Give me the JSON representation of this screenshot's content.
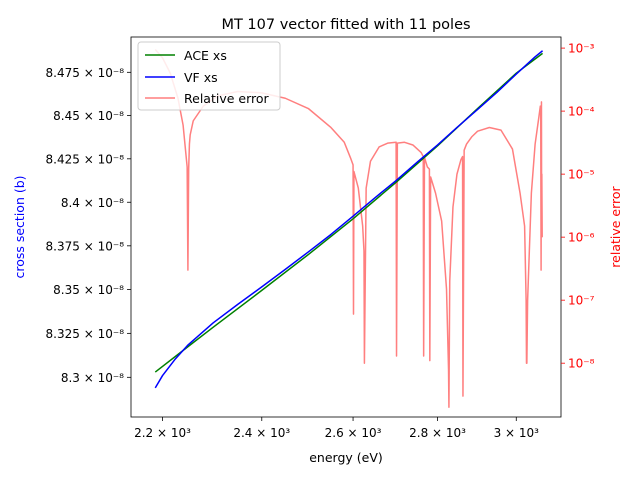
{
  "chart_data": {
    "type": "line",
    "title": "MT 107 vector fitted with 11 poles",
    "xlabel": "energy (eV)",
    "ylabel_left": "cross section (b)",
    "ylabel_right": "relative error",
    "x_scale": "log",
    "y_left_scale": "log",
    "y_right_scale": "log",
    "xlim": [
      2140,
      3120
    ],
    "ylim_left": [
      8.2775e-08,
      8.4955e-08
    ],
    "ylim_right": [
      1.4e-09,
      0.0015
    ],
    "x_ticks": [
      {
        "value": 2200,
        "label": "2.2 × 10³"
      },
      {
        "value": 2400,
        "label": "2.4 × 10³"
      },
      {
        "value": 2600,
        "label": "2.6 × 10³"
      },
      {
        "value": 2800,
        "label": "2.8 × 10³"
      },
      {
        "value": 3000,
        "label": "3 × 10³"
      }
    ],
    "y_left_ticks": [
      {
        "value": 8.3e-08,
        "label": "8.3 × 10⁻⁸"
      },
      {
        "value": 8.325e-08,
        "label": "8.325 × 10⁻⁸"
      },
      {
        "value": 8.35e-08,
        "label": "8.35 × 10⁻⁸"
      },
      {
        "value": 8.375e-08,
        "label": "8.375 × 10⁻⁸"
      },
      {
        "value": 8.4e-08,
        "label": "8.4 × 10⁻⁸"
      },
      {
        "value": 8.425e-08,
        "label": "8.425 × 10⁻⁸"
      },
      {
        "value": 8.45e-08,
        "label": "8.45 × 10⁻⁸"
      },
      {
        "value": 8.475e-08,
        "label": "8.475 × 10⁻⁸"
      }
    ],
    "y_right_ticks": [
      {
        "value": 1e-08,
        "label": "10⁻⁸"
      },
      {
        "value": 1e-07,
        "label": "10⁻⁷"
      },
      {
        "value": 1e-06,
        "label": "10⁻⁶"
      },
      {
        "value": 1e-05,
        "label": "10⁻⁵"
      },
      {
        "value": 0.0001,
        "label": "10⁻⁴"
      },
      {
        "value": 0.001,
        "label": "10⁻³"
      }
    ],
    "legend": "top-left",
    "grid": false,
    "series": [
      {
        "name": "ACE xs",
        "color": "#008000",
        "axis": "left",
        "x": [
          2186,
          2250,
          2300,
          2400,
          2500,
          2600,
          2700,
          2800,
          2900,
          3000,
          3070
        ],
        "y": [
          8.303e-08,
          8.3175e-08,
          8.3285e-08,
          8.3495e-08,
          8.37e-08,
          8.3905e-08,
          8.4115e-08,
          8.4325e-08,
          8.454e-08,
          8.4745e-08,
          8.486e-08
        ]
      },
      {
        "name": "VF xs",
        "color": "#0000ff",
        "axis": "left",
        "x": [
          2186,
          2200,
          2225,
          2250,
          2300,
          2350,
          2400,
          2450,
          2500,
          2550,
          2600,
          2650,
          2700,
          2750,
          2800,
          2850,
          2900,
          2950,
          3000,
          3050,
          3070
        ],
        "y": [
          8.294e-08,
          8.301e-08,
          8.3105e-08,
          8.3185e-08,
          8.331e-08,
          8.3415e-08,
          8.3515e-08,
          8.3615e-08,
          8.3715e-08,
          8.3815e-08,
          8.392e-08,
          8.4025e-08,
          8.4125e-08,
          8.423e-08,
          8.433e-08,
          8.4435e-08,
          8.4535e-08,
          8.4635e-08,
          8.474e-08,
          8.484e-08,
          8.4875e-08
        ]
      },
      {
        "name": "Relative error",
        "color": "#ff7f7f",
        "axis": "right",
        "x": [
          2186,
          2200,
          2215,
          2230,
          2240,
          2248,
          2249.5,
          2251,
          2252.5,
          2254,
          2260,
          2280,
          2310,
          2350,
          2400,
          2450,
          2500,
          2550,
          2580,
          2595,
          2600,
          2601,
          2602,
          2612,
          2622,
          2625,
          2626,
          2630,
          2640,
          2660,
          2680,
          2700,
          2701,
          2703,
          2720,
          2740,
          2760,
          2765,
          2766,
          2768,
          2775,
          2780,
          2781,
          2783,
          2795,
          2810,
          2822,
          2827,
          2828,
          2830,
          2838,
          2848,
          2858,
          2862,
          2863,
          2866,
          2872,
          2885,
          2900,
          2930,
          2960,
          2990,
          3010,
          3022,
          3026,
          3027,
          3028,
          3030,
          3040,
          3050,
          3060,
          3064,
          3065,
          3066,
          3067,
          3067.5,
          3068,
          3068.5,
          3069
        ],
        "y": [
          0.00095,
          0.0007,
          0.0004,
          0.00016,
          6e-05,
          1.3e-05,
          3e-07,
          1.2e-05,
          3e-05,
          4.2e-05,
          7e-05,
          0.00012,
          0.000175,
          0.000205,
          0.000195,
          0.00016,
          0.00011,
          5.5e-05,
          3.2e-05,
          1.75e-05,
          1.4e-05,
          6e-08,
          1.1e-05,
          6e-06,
          1.5e-06,
          6e-07,
          1e-08,
          6e-06,
          1.6e-05,
          2.7e-05,
          3.1e-05,
          3.2e-05,
          1.3e-08,
          3.1e-05,
          3.2e-05,
          2.9e-05,
          2.2e-05,
          1.9e-05,
          1.3e-08,
          1.85e-05,
          1.3e-05,
          1.2e-05,
          1.1e-08,
          9e-06,
          5e-06,
          1.8e-06,
          1.5e-07,
          8e-09,
          2e-09,
          2e-07,
          3e-06,
          1e-05,
          1.7e-05,
          1.9e-05,
          3e-09,
          2.4e-05,
          3e-05,
          3.9e-05,
          4.8e-05,
          5.5e-05,
          5e-05,
          2.5e-05,
          5e-06,
          1.5e-06,
          1e-07,
          1e-08,
          1e-08,
          1e-07,
          5e-06,
          3e-05,
          8e-05,
          0.00012,
          0.0001,
          3e-07,
          0.00014,
          1e-06,
          1e-05,
          3e-06,
          1e-06
        ]
      }
    ]
  }
}
